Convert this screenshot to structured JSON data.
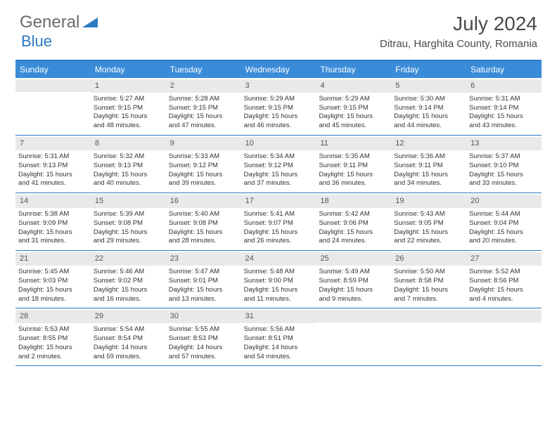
{
  "logo": {
    "text1": "General",
    "text2": "Blue"
  },
  "title": "July 2024",
  "location": "Ditrau, Harghita County, Romania",
  "weekdays": [
    "Sunday",
    "Monday",
    "Tuesday",
    "Wednesday",
    "Thursday",
    "Friday",
    "Saturday"
  ],
  "colors": {
    "header_bg": "#3a8bd8",
    "border": "#2b7ac4",
    "daynum_bg": "#e9e9e9"
  },
  "weeks": [
    [
      {
        "num": "",
        "lines": []
      },
      {
        "num": "1",
        "lines": [
          "Sunrise: 5:27 AM",
          "Sunset: 9:15 PM",
          "Daylight: 15 hours",
          "and 48 minutes."
        ]
      },
      {
        "num": "2",
        "lines": [
          "Sunrise: 5:28 AM",
          "Sunset: 9:15 PM",
          "Daylight: 15 hours",
          "and 47 minutes."
        ]
      },
      {
        "num": "3",
        "lines": [
          "Sunrise: 5:29 AM",
          "Sunset: 9:15 PM",
          "Daylight: 15 hours",
          "and 46 minutes."
        ]
      },
      {
        "num": "4",
        "lines": [
          "Sunrise: 5:29 AM",
          "Sunset: 9:15 PM",
          "Daylight: 15 hours",
          "and 45 minutes."
        ]
      },
      {
        "num": "5",
        "lines": [
          "Sunrise: 5:30 AM",
          "Sunset: 9:14 PM",
          "Daylight: 15 hours",
          "and 44 minutes."
        ]
      },
      {
        "num": "6",
        "lines": [
          "Sunrise: 5:31 AM",
          "Sunset: 9:14 PM",
          "Daylight: 15 hours",
          "and 43 minutes."
        ]
      }
    ],
    [
      {
        "num": "7",
        "lines": [
          "Sunrise: 5:31 AM",
          "Sunset: 9:13 PM",
          "Daylight: 15 hours",
          "and 41 minutes."
        ]
      },
      {
        "num": "8",
        "lines": [
          "Sunrise: 5:32 AM",
          "Sunset: 9:13 PM",
          "Daylight: 15 hours",
          "and 40 minutes."
        ]
      },
      {
        "num": "9",
        "lines": [
          "Sunrise: 5:33 AM",
          "Sunset: 9:12 PM",
          "Daylight: 15 hours",
          "and 39 minutes."
        ]
      },
      {
        "num": "10",
        "lines": [
          "Sunrise: 5:34 AM",
          "Sunset: 9:12 PM",
          "Daylight: 15 hours",
          "and 37 minutes."
        ]
      },
      {
        "num": "11",
        "lines": [
          "Sunrise: 5:35 AM",
          "Sunset: 9:11 PM",
          "Daylight: 15 hours",
          "and 36 minutes."
        ]
      },
      {
        "num": "12",
        "lines": [
          "Sunrise: 5:36 AM",
          "Sunset: 9:11 PM",
          "Daylight: 15 hours",
          "and 34 minutes."
        ]
      },
      {
        "num": "13",
        "lines": [
          "Sunrise: 5:37 AM",
          "Sunset: 9:10 PM",
          "Daylight: 15 hours",
          "and 33 minutes."
        ]
      }
    ],
    [
      {
        "num": "14",
        "lines": [
          "Sunrise: 5:38 AM",
          "Sunset: 9:09 PM",
          "Daylight: 15 hours",
          "and 31 minutes."
        ]
      },
      {
        "num": "15",
        "lines": [
          "Sunrise: 5:39 AM",
          "Sunset: 9:08 PM",
          "Daylight: 15 hours",
          "and 29 minutes."
        ]
      },
      {
        "num": "16",
        "lines": [
          "Sunrise: 5:40 AM",
          "Sunset: 9:08 PM",
          "Daylight: 15 hours",
          "and 28 minutes."
        ]
      },
      {
        "num": "17",
        "lines": [
          "Sunrise: 5:41 AM",
          "Sunset: 9:07 PM",
          "Daylight: 15 hours",
          "and 26 minutes."
        ]
      },
      {
        "num": "18",
        "lines": [
          "Sunrise: 5:42 AM",
          "Sunset: 9:06 PM",
          "Daylight: 15 hours",
          "and 24 minutes."
        ]
      },
      {
        "num": "19",
        "lines": [
          "Sunrise: 5:43 AM",
          "Sunset: 9:05 PM",
          "Daylight: 15 hours",
          "and 22 minutes."
        ]
      },
      {
        "num": "20",
        "lines": [
          "Sunrise: 5:44 AM",
          "Sunset: 9:04 PM",
          "Daylight: 15 hours",
          "and 20 minutes."
        ]
      }
    ],
    [
      {
        "num": "21",
        "lines": [
          "Sunrise: 5:45 AM",
          "Sunset: 9:03 PM",
          "Daylight: 15 hours",
          "and 18 minutes."
        ]
      },
      {
        "num": "22",
        "lines": [
          "Sunrise: 5:46 AM",
          "Sunset: 9:02 PM",
          "Daylight: 15 hours",
          "and 16 minutes."
        ]
      },
      {
        "num": "23",
        "lines": [
          "Sunrise: 5:47 AM",
          "Sunset: 9:01 PM",
          "Daylight: 15 hours",
          "and 13 minutes."
        ]
      },
      {
        "num": "24",
        "lines": [
          "Sunrise: 5:48 AM",
          "Sunset: 9:00 PM",
          "Daylight: 15 hours",
          "and 11 minutes."
        ]
      },
      {
        "num": "25",
        "lines": [
          "Sunrise: 5:49 AM",
          "Sunset: 8:59 PM",
          "Daylight: 15 hours",
          "and 9 minutes."
        ]
      },
      {
        "num": "26",
        "lines": [
          "Sunrise: 5:50 AM",
          "Sunset: 8:58 PM",
          "Daylight: 15 hours",
          "and 7 minutes."
        ]
      },
      {
        "num": "27",
        "lines": [
          "Sunrise: 5:52 AM",
          "Sunset: 8:56 PM",
          "Daylight: 15 hours",
          "and 4 minutes."
        ]
      }
    ],
    [
      {
        "num": "28",
        "lines": [
          "Sunrise: 5:53 AM",
          "Sunset: 8:55 PM",
          "Daylight: 15 hours",
          "and 2 minutes."
        ]
      },
      {
        "num": "29",
        "lines": [
          "Sunrise: 5:54 AM",
          "Sunset: 8:54 PM",
          "Daylight: 14 hours",
          "and 59 minutes."
        ]
      },
      {
        "num": "30",
        "lines": [
          "Sunrise: 5:55 AM",
          "Sunset: 8:53 PM",
          "Daylight: 14 hours",
          "and 57 minutes."
        ]
      },
      {
        "num": "31",
        "lines": [
          "Sunrise: 5:56 AM",
          "Sunset: 8:51 PM",
          "Daylight: 14 hours",
          "and 54 minutes."
        ]
      },
      {
        "num": "",
        "lines": []
      },
      {
        "num": "",
        "lines": []
      },
      {
        "num": "",
        "lines": []
      }
    ]
  ]
}
